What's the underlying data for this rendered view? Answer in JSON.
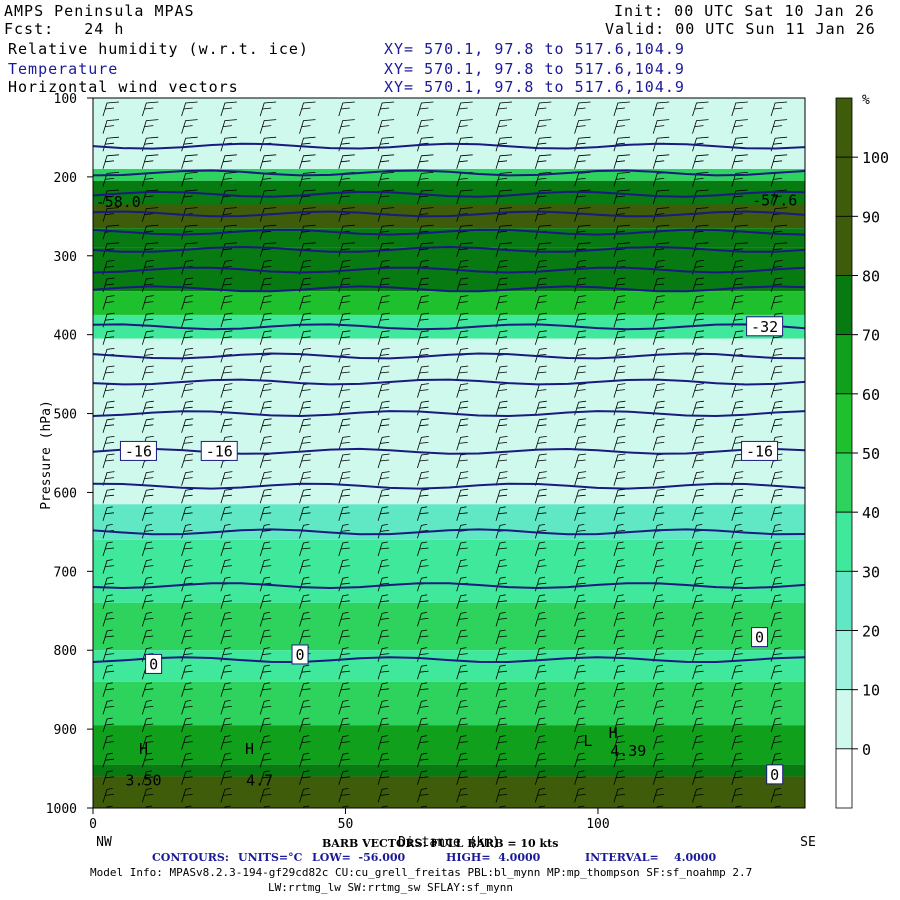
{
  "header": {
    "title": "AMPS Peninsula MPAS",
    "forecast": "Fcst:   24 h",
    "init": "Init: 00 UTC Sat 10 Jan 26",
    "valid": "Valid: 00 UTC Sun 11 Jan 26",
    "fields": [
      {
        "label": "Relative humidity (w.r.t. ice)",
        "xy": "XY= 570.1, 97.8 to 517.6,104.9"
      },
      {
        "label": "Temperature",
        "xy": "XY= 570.1, 97.8 to 517.6,104.9"
      },
      {
        "label": "Horizontal wind vectors",
        "xy": "XY= 570.1, 97.8 to 517.6,104.9"
      }
    ]
  },
  "colors": {
    "temperature_contour": "#1a1a80",
    "rh_fills": [
      "#ffffff",
      "#cef9ec",
      "#9cf3dd",
      "#5fe8c3",
      "#3fe89a",
      "#2ed35e",
      "#1fc02e",
      "#10a01c",
      "#087a12",
      "#3f5c0a"
    ]
  },
  "footer": {
    "barb_note": "BARB VECTORS: FULL BARB = 10 kts",
    "contours_label": "CONTOURS:",
    "contours_units": "UNITS=°C",
    "low": "LOW=  -56.000",
    "high": "HIGH=  4.0000",
    "interval": "INTERVAL=    4.0000",
    "model_info": "Model Info: MPASv8.2.3-194-gf29cd82c CU:cu_grell_freitas PBL:bl_mynn MP:mp_thompson SF:sf_noahmp 2.7",
    "model_info2": "LW:rrtmg_lw SW:rrtmg_sw SFLAY:sf_mynn"
  },
  "chart_data": {
    "type": "heatmap",
    "xlabel": "Distance (km)",
    "ylabel": "Pressure (hPa)",
    "xlim": [
      0,
      141
    ],
    "ylim": [
      1000,
      100
    ],
    "x_ticks": [
      0,
      50,
      100
    ],
    "y_ticks": [
      100,
      200,
      300,
      400,
      500,
      600,
      700,
      800,
      900,
      1000
    ],
    "x_end_labels": [
      "NW",
      "SE"
    ],
    "colorbar": {
      "unit": "%",
      "ticks": [
        0,
        10,
        20,
        30,
        40,
        50,
        60,
        70,
        80,
        90,
        100
      ]
    },
    "rh_layers": [
      {
        "p_top": 100,
        "p_bottom": 190,
        "rh": 10
      },
      {
        "p_top": 190,
        "p_bottom": 205,
        "rh": 55
      },
      {
        "p_top": 205,
        "p_bottom": 235,
        "rh": 82
      },
      {
        "p_top": 235,
        "p_bottom": 265,
        "rh": 95
      },
      {
        "p_top": 265,
        "p_bottom": 290,
        "rh": 85
      },
      {
        "p_top": 290,
        "p_bottom": 345,
        "rh": 88
      },
      {
        "p_top": 345,
        "p_bottom": 375,
        "rh": 65
      },
      {
        "p_top": 375,
        "p_bottom": 405,
        "rh": 45
      },
      {
        "p_top": 405,
        "p_bottom": 615,
        "rh": 15
      },
      {
        "p_top": 615,
        "p_bottom": 660,
        "rh": 35
      },
      {
        "p_top": 660,
        "p_bottom": 740,
        "rh": 45
      },
      {
        "p_top": 740,
        "p_bottom": 800,
        "rh": 55
      },
      {
        "p_top": 800,
        "p_bottom": 840,
        "rh": 45
      },
      {
        "p_top": 840,
        "p_bottom": 895,
        "rh": 55
      },
      {
        "p_top": 895,
        "p_bottom": 945,
        "rh": 75
      },
      {
        "p_top": 945,
        "p_bottom": 960,
        "rh": 85
      },
      {
        "p_top": 960,
        "p_bottom": 1000,
        "rh": 100
      }
    ],
    "temperature_contours": [
      {
        "p": 161,
        "label": ""
      },
      {
        "p": 195,
        "label": ""
      },
      {
        "p": 222,
        "label": ""
      },
      {
        "p": 247,
        "label": ""
      },
      {
        "p": 270,
        "label": ""
      },
      {
        "p": 292,
        "label": ""
      },
      {
        "p": 318,
        "label": ""
      },
      {
        "p": 342,
        "label": ""
      },
      {
        "p": 390,
        "label": "-32"
      },
      {
        "p": 427,
        "label": ""
      },
      {
        "p": 460,
        "label": ""
      },
      {
        "p": 500,
        "label": ""
      },
      {
        "p": 548,
        "label": "-16"
      },
      {
        "p": 592,
        "label": ""
      },
      {
        "p": 650,
        "label": ""
      },
      {
        "p": 718,
        "label": ""
      },
      {
        "p": 812,
        "label": "0"
      }
    ],
    "annotations": [
      {
        "text": "-58.0",
        "x": 5,
        "p": 232
      },
      {
        "text": "-57.6",
        "x": 135,
        "p": 230
      },
      {
        "text": "-16",
        "x": 9,
        "p": 548
      },
      {
        "text": "-16",
        "x": 25,
        "p": 548
      },
      {
        "text": "-16",
        "x": 132,
        "p": 548
      },
      {
        "text": "-32",
        "x": 133,
        "p": 390
      },
      {
        "text": "0",
        "x": 12,
        "p": 818
      },
      {
        "text": "0",
        "x": 41,
        "p": 806
      },
      {
        "text": "0",
        "x": 132,
        "p": 784
      },
      {
        "text": "0",
        "x": 135,
        "p": 958
      },
      {
        "text": "3.50",
        "x": 10,
        "p": 965
      },
      {
        "text": "H",
        "x": 10,
        "p": 925
      },
      {
        "text": "H",
        "x": 31,
        "p": 925
      },
      {
        "text": "4.7",
        "x": 33,
        "p": 965
      },
      {
        "text": "H",
        "x": 103,
        "p": 905
      },
      {
        "text": "4.39",
        "x": 106,
        "p": 928
      },
      {
        "text": "L",
        "x": 98,
        "p": 915
      }
    ]
  }
}
